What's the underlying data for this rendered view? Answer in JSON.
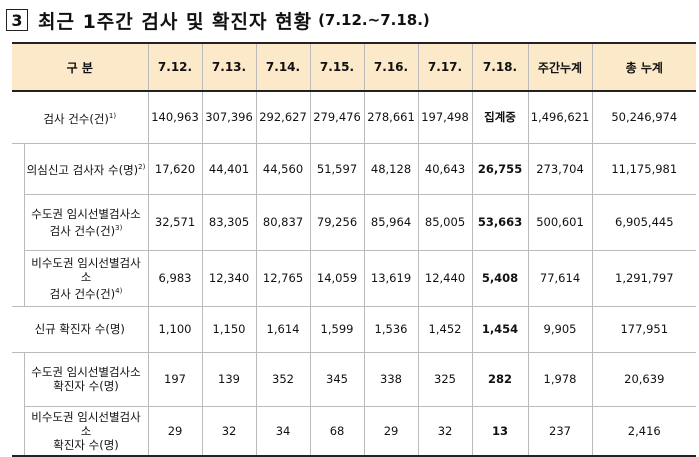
{
  "title": {
    "number": "3",
    "text": "최근 1주간 검사 및 확진자 현황",
    "period": "(7.12.~7.18.)"
  },
  "table": {
    "headers": [
      "구 분",
      "7.12.",
      "7.13.",
      "7.14.",
      "7.15.",
      "7.16.",
      "7.17.",
      "7.18.",
      "주간누계",
      "총 누계"
    ],
    "rows": [
      {
        "label": "검사 건수(건)",
        "sup": "1)",
        "values": [
          "140,963",
          "307,396",
          "292,627",
          "279,476",
          "278,661",
          "197,498",
          "집계중",
          "1,496,621",
          "50,246,974"
        ]
      },
      {
        "label": "의심신고 검사자 수(명)",
        "sup": "2)",
        "values": [
          "17,620",
          "44,401",
          "44,560",
          "51,597",
          "48,128",
          "40,643",
          "26,755",
          "273,704",
          "11,175,981"
        ]
      },
      {
        "label_line1": "수도권 임시선별검사소",
        "label_line2": "검사 건수(건)",
        "sup": "3)",
        "values": [
          "32,571",
          "83,305",
          "80,837",
          "79,256",
          "85,964",
          "85,005",
          "53,663",
          "500,601",
          "6,905,445"
        ]
      },
      {
        "label_line1": "비수도권 임시선별검사소",
        "label_line2": "검사 건수(건)",
        "sup": "4)",
        "values": [
          "6,983",
          "12,340",
          "12,765",
          "14,059",
          "13,619",
          "12,440",
          "5,408",
          "77,614",
          "1,291,797"
        ]
      },
      {
        "label": "신규 확진자 수(명)",
        "values": [
          "1,100",
          "1,150",
          "1,614",
          "1,599",
          "1,536",
          "1,452",
          "1,454",
          "9,905",
          "177,951"
        ]
      },
      {
        "label_line1": "수도권 임시선별검사소",
        "label_line2": "확진자 수(명)",
        "values": [
          "197",
          "139",
          "352",
          "345",
          "338",
          "325",
          "282",
          "1,978",
          "20,639"
        ]
      },
      {
        "label_line1": "비수도권 임시선별검사소",
        "label_line2": "확진자 수(명)",
        "values": [
          "29",
          "32",
          "34",
          "68",
          "29",
          "32",
          "13",
          "237",
          "2,416"
        ]
      }
    ]
  }
}
